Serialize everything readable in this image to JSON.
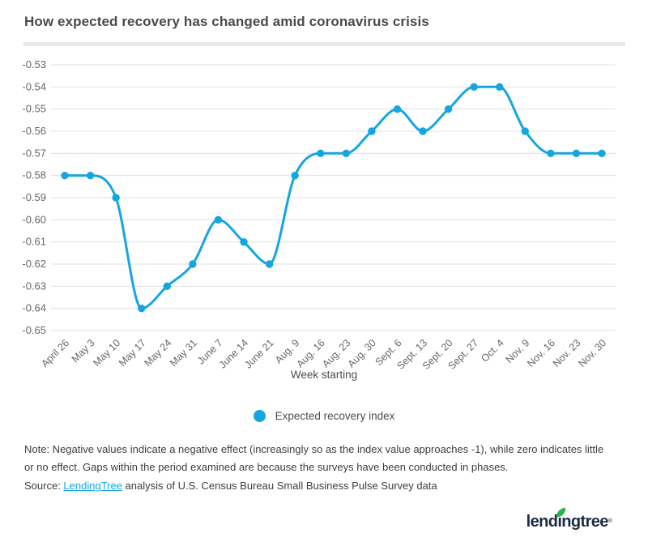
{
  "title": "How expected recovery has changed amid coronavirus crisis",
  "chart_data": {
    "type": "line",
    "title": "",
    "xlabel": "Week starting",
    "ylabel": "",
    "grid": "horizontal",
    "legend_position": "bottom",
    "legend": "Expected recovery index",
    "ylim": [
      -0.65,
      -0.53
    ],
    "ytick_step": 0.01,
    "yticks": [
      "-0.53",
      "-0.54",
      "-0.55",
      "-0.56",
      "-0.57",
      "-0.58",
      "-0.59",
      "-0.60",
      "-0.61",
      "-0.62",
      "-0.63",
      "-0.64",
      "-0.65"
    ],
    "categories": [
      "April 26",
      "May 3",
      "May 10",
      "May 17",
      "May 24",
      "May 31",
      "June 7",
      "June 14",
      "June 21",
      "Aug. 9",
      "Aug. 16",
      "Aug. 23",
      "Aug. 30",
      "Sept. 6",
      "Sept. 13",
      "Sept. 20",
      "Sept. 27",
      "Oct. 4",
      "Nov. 9",
      "Nov. 16",
      "Nov. 23",
      "Nov. 30"
    ],
    "series": [
      {
        "name": "Expected recovery index",
        "values": [
          -0.58,
          -0.58,
          -0.59,
          -0.64,
          -0.63,
          -0.62,
          -0.6,
          -0.61,
          -0.62,
          -0.58,
          -0.57,
          -0.57,
          -0.56,
          -0.55,
          -0.56,
          -0.55,
          -0.54,
          -0.54,
          -0.56,
          -0.57,
          -0.57,
          -0.57
        ]
      }
    ],
    "marker": "circle",
    "curve": "monotone"
  },
  "note": {
    "lines": [
      "Note: Negative values indicate a negative effect (increasingly so as the index value approaches -1), while zero indicates little",
      "or no effect. Gaps within the period examined are because the surveys have been conducted in phases."
    ]
  },
  "source": {
    "prefix": "Source: ",
    "link_text": "LendingTree",
    "suffix": " analysis of U.S. Census Bureau Small Business Pulse Survey data"
  },
  "logo": {
    "text": "lendingtree",
    "trademark": "®"
  },
  "colors": {
    "accent": "#15a6e0",
    "grid": "#e0e0e0",
    "axis_text": "#666666",
    "title_text": "#4a4a4a",
    "body_text": "#3d3d3d",
    "divider": "#e8e8e8",
    "link": "#15a6e0",
    "logo_navy": "#1d2b45",
    "leaf_green": "#2cb34a"
  }
}
